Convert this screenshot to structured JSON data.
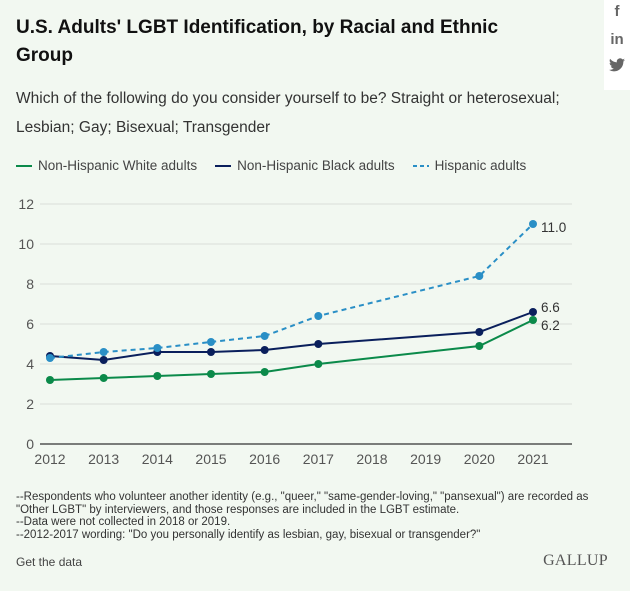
{
  "social": {
    "items": [
      {
        "icon": "facebook-icon",
        "label": "f"
      },
      {
        "icon": "linkedin-icon",
        "label": "in"
      },
      {
        "icon": "twitter-icon",
        "label": "🐦"
      }
    ]
  },
  "header": {
    "title": "U.S. Adults' LGBT Identification, by Racial and Ethnic Group",
    "subtitle": "Which of the following do you consider yourself to be? Straight or heterosexual; Lesbian; Gay; Bisexual; Transgender"
  },
  "chart_data": {
    "type": "line",
    "x": [
      2012,
      2013,
      2014,
      2015,
      2016,
      2017,
      2020,
      2021
    ],
    "xticks": [
      "2012",
      "2013",
      "2014",
      "2015",
      "2016",
      "2017",
      "2018",
      "2019",
      "2020",
      "2021"
    ],
    "yticks": [
      "0",
      "2",
      "4",
      "6",
      "8",
      "10",
      "12"
    ],
    "ylim": [
      0,
      12
    ],
    "grid": true,
    "legend": "top",
    "series": [
      {
        "name": "Non-Hispanic White adults",
        "color": "#0b8a4a",
        "style": "solid",
        "values": [
          3.2,
          3.3,
          3.4,
          3.5,
          3.6,
          4.0,
          4.9,
          6.2
        ],
        "end_label": "6.2"
      },
      {
        "name": "Non-Hispanic Black adults",
        "color": "#0a1f5c",
        "style": "solid",
        "values": [
          4.4,
          4.2,
          4.6,
          4.6,
          4.7,
          5.0,
          5.6,
          6.6
        ],
        "end_label": "6.6"
      },
      {
        "name": "Hispanic adults",
        "color": "#2a8fc6",
        "style": "dashed",
        "values": [
          4.3,
          4.6,
          4.8,
          5.1,
          5.4,
          6.4,
          8.4,
          11.0
        ],
        "end_label": "11.0"
      }
    ]
  },
  "notes": [
    "--Respondents who volunteer another identity (e.g., \"queer,\" \"same-gender-loving,\" \"pansexual\") are recorded as \"Other LGBT\" by interviewers, and those responses are included in the LGBT estimate.",
    "--Data were not collected in 2018 or 2019.",
    "--2012-2017 wording: \"Do you personally identify as lesbian, gay, bisexual or transgender?\""
  ],
  "footer": {
    "link": "Get the data",
    "logo": "GALLUP"
  }
}
